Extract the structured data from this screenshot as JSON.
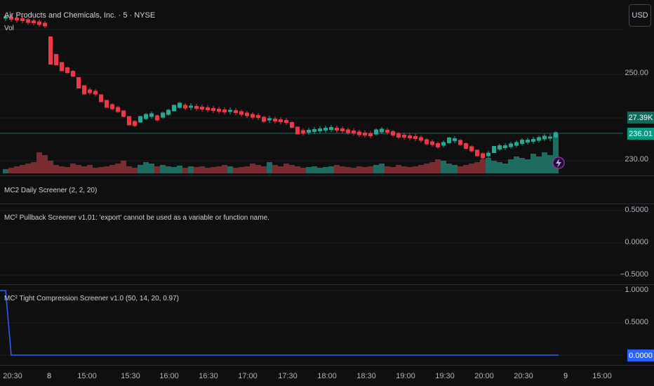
{
  "header": {
    "symbol_title": "Air Products and Chemicals, Inc. · 5 · NYSE",
    "volume_label": "Vol",
    "currency_button": "USD"
  },
  "panes": {
    "daily": {
      "label": "MC2 Daily Screener (2, 2, 20)"
    },
    "pullback": {
      "label": "MC² Pullback Screener v1.01: 'export' cannot be used as a variable or function name.",
      "axis": [
        "0.5000",
        "0.0000",
        "−0.5000"
      ]
    },
    "compression": {
      "label": "MC² Tight Compression Screener v1.0 (50, 14, 20, 0.97)",
      "axis": [
        "1.0000",
        "0.5000"
      ],
      "value_tag": "0.0000"
    }
  },
  "price_axis": {
    "labels": [
      "250.00",
      "230.00"
    ],
    "volume_tag": "27.39K",
    "price_tag": "236.01"
  },
  "time_axis": [
    "20:30",
    "8",
    "15:00",
    "15:30",
    "16:00",
    "16:30",
    "17:00",
    "17:30",
    "18:00",
    "18:30",
    "19:00",
    "19:30",
    "20:00",
    "20:30",
    "9",
    "15:00"
  ],
  "colors": {
    "up": "#22ab94",
    "down": "#f23645",
    "up_volume": "#1e6b5f",
    "down_volume": "#7a2c30",
    "indicator_line": "#2962ff"
  },
  "icons": {
    "lightning_marker": "lightning-icon"
  }
}
